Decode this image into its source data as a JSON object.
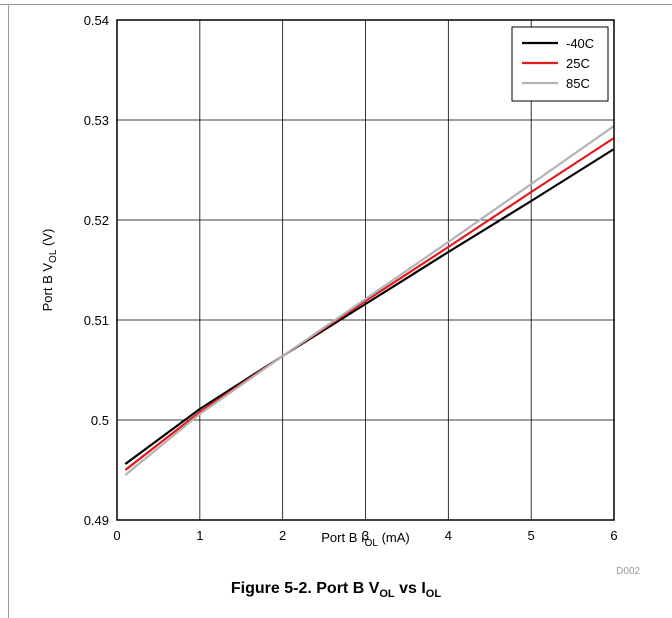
{
  "figure": {
    "caption_prefix": "Figure 5-2. Port B V",
    "caption_sub1": "OL",
    "caption_mid": " vs I",
    "caption_sub2": "OL",
    "code": "D002"
  },
  "chart_data": {
    "type": "line",
    "xlabel": {
      "prefix": "Port B I",
      "sub": "OL",
      "suffix": " (mA)"
    },
    "ylabel": {
      "prefix": "Port B V",
      "sub": "OL",
      "suffix": " (V)"
    },
    "xlim": [
      0,
      6
    ],
    "ylim": [
      0.49,
      0.54
    ],
    "xticks": [
      0,
      1,
      2,
      3,
      4,
      5,
      6
    ],
    "xtick_labels": [
      "0",
      "1",
      "2",
      "3",
      "4",
      "5",
      "6"
    ],
    "yticks": [
      0.49,
      0.5,
      0.51,
      0.52,
      0.53,
      0.54
    ],
    "ytick_labels": [
      "0.49",
      "0.5",
      "0.51",
      "0.52",
      "0.53",
      "0.54"
    ],
    "grid": true,
    "legend_position": "top-right",
    "series": [
      {
        "name": "-40C",
        "color": "#000000",
        "x": [
          0.1,
          1,
          2,
          3,
          4,
          5,
          6
        ],
        "y": [
          0.4956,
          0.5011,
          0.5064,
          0.5116,
          0.5168,
          0.5219,
          0.5271
        ]
      },
      {
        "name": "25C",
        "color": "#e31a1c",
        "x": [
          0.1,
          1,
          2,
          3,
          4,
          5,
          6
        ],
        "y": [
          0.495,
          0.5008,
          0.5064,
          0.5119,
          0.5173,
          0.5228,
          0.5282
        ]
      },
      {
        "name": "85C",
        "color": "#b3b3b3",
        "x": [
          0.1,
          1,
          2,
          3,
          4,
          5,
          6
        ],
        "y": [
          0.4945,
          0.5006,
          0.5064,
          0.5121,
          0.5178,
          0.5236,
          0.5294
        ]
      }
    ]
  }
}
